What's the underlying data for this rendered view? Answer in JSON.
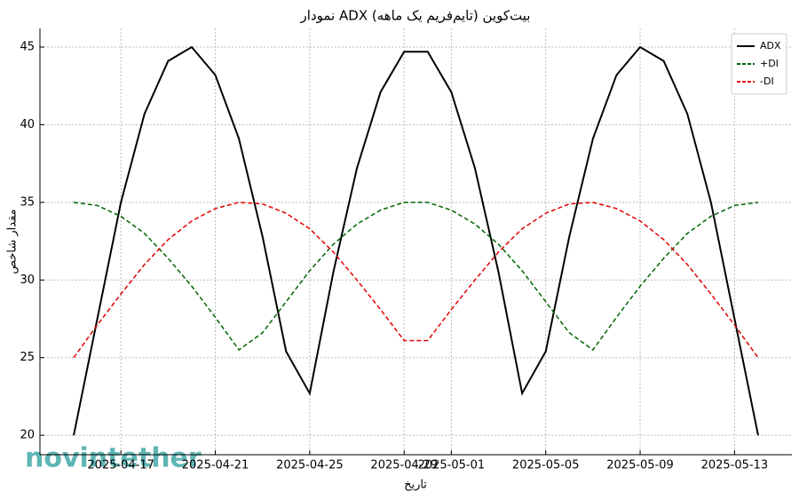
{
  "chart_data": {
    "type": "line",
    "title": "نمودار ADX بیت‌کوین (تایم‌فریم یک ماهه)",
    "xlabel": "تاریخ",
    "ylabel": "مقدار شاخص",
    "watermark": "novintether",
    "x": [
      "2025-04-15",
      "2025-04-16",
      "2025-04-17",
      "2025-04-18",
      "2025-04-19",
      "2025-04-20",
      "2025-04-21",
      "2025-04-22",
      "2025-04-23",
      "2025-04-24",
      "2025-04-25",
      "2025-04-26",
      "2025-04-27",
      "2025-04-28",
      "2025-04-29",
      "2025-04-30",
      "2025-05-01",
      "2025-05-02",
      "2025-05-03",
      "2025-05-04",
      "2025-05-05",
      "2025-05-06",
      "2025-05-07",
      "2025-05-08",
      "2025-05-09",
      "2025-05-10",
      "2025-05-11",
      "2025-05-12",
      "2025-05-13",
      "2025-05-14"
    ],
    "series": [
      {
        "name": "ADX",
        "color": "#000000",
        "dash": "solid",
        "values": [
          20,
          27.5,
          35,
          40.7,
          44.1,
          45,
          43.2,
          39.1,
          32.8,
          25.4,
          22.7,
          30.5,
          37.2,
          42.1,
          44.7,
          44.7,
          42.1,
          37.2,
          30.5,
          22.7,
          25.4,
          32.8,
          39.1,
          43.2,
          45,
          44.1,
          40.7,
          35,
          27.5,
          20
        ]
      },
      {
        "name": "+DI",
        "color": "#006400",
        "dash": "dashed",
        "values": [
          35,
          34.8,
          34.1,
          33,
          31.4,
          29.6,
          27.6,
          25.5,
          26.6,
          28.6,
          30.6,
          32.3,
          33.6,
          34.5,
          35,
          35,
          34.5,
          33.6,
          32.3,
          30.6,
          28.6,
          26.6,
          25.5,
          27.6,
          29.6,
          31.4,
          33,
          34.1,
          34.8,
          35
        ]
      },
      {
        "name": "-DI",
        "color": "#e00000",
        "dash": "dashed",
        "values": [
          25,
          27.1,
          29.1,
          31,
          32.6,
          33.8,
          34.6,
          35,
          34.9,
          34.3,
          33.3,
          31.8,
          30,
          28.1,
          26.1,
          26.1,
          28.1,
          30,
          31.8,
          33.3,
          34.3,
          34.9,
          35,
          34.6,
          33.8,
          32.6,
          31,
          29.1,
          27.1,
          25
        ]
      }
    ],
    "xlim": [
      "2025-04-13T13:40",
      "2025-05-15T10:20"
    ],
    "xticks": [
      "2025-04-17",
      "2025-04-21",
      "2025-04-25",
      "2025-04-29",
      "2025-05-01",
      "2025-05-05",
      "2025-05-09",
      "2025-05-13"
    ],
    "ylim": [
      18.75,
      46.2
    ],
    "yticks": [
      20,
      25,
      30,
      35,
      40,
      45
    ],
    "grid": true,
    "legend": "upper right"
  }
}
